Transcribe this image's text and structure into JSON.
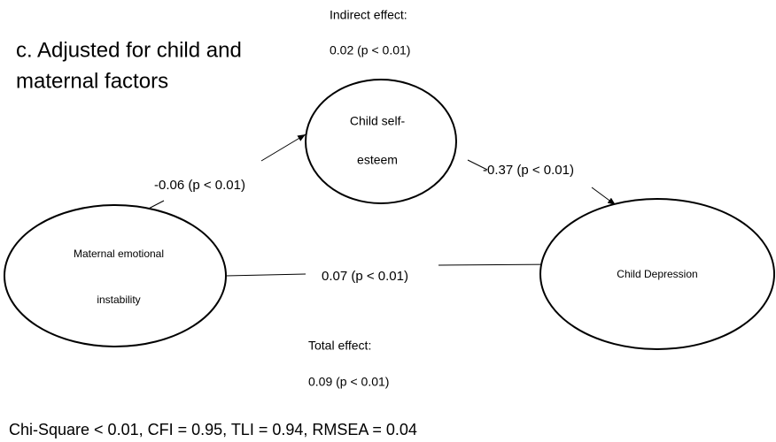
{
  "title": [
    "c.  Adjusted for child and",
    "maternal factors"
  ],
  "indirect_effect": {
    "label": "Indirect effect:",
    "value": "0.02 (p < 0.01)"
  },
  "total_effect": {
    "label": "Total effect:",
    "value": "0.09 (p < 0.01)"
  },
  "nodes": [
    {
      "label": [
        "Child self-",
        "esteem"
      ]
    },
    {
      "label": [
        "Maternal emotional",
        "instability"
      ]
    },
    {
      "label": [
        "Child Depression"
      ]
    }
  ],
  "edges": [
    {
      "label": "-0.06 (p < 0.01)"
    },
    {
      "label": "-0.37 (p < 0.01)"
    },
    {
      "label": "0.07 (p < 0.01)"
    }
  ],
  "fit": "Chi-Square < 0.01, CFI = 0.95, TLI = 0.94, RMSEA = 0.04"
}
